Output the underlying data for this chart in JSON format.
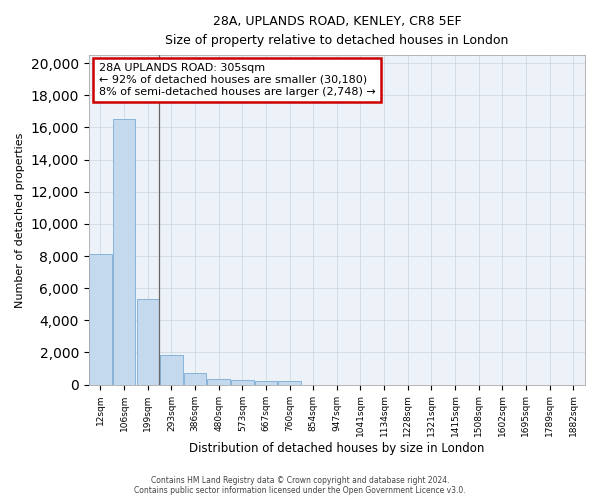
{
  "title1": "28A, UPLANDS ROAD, KENLEY, CR8 5EF",
  "title2": "Size of property relative to detached houses in London",
  "xlabel": "Distribution of detached houses by size in London",
  "ylabel": "Number of detached properties",
  "categories": [
    "12sqm",
    "106sqm",
    "199sqm",
    "293sqm",
    "386sqm",
    "480sqm",
    "573sqm",
    "667sqm",
    "760sqm",
    "854sqm",
    "947sqm",
    "1041sqm",
    "1134sqm",
    "1228sqm",
    "1321sqm",
    "1415sqm",
    "1508sqm",
    "1602sqm",
    "1695sqm",
    "1789sqm",
    "1882sqm"
  ],
  "values": [
    8100,
    16500,
    5300,
    1850,
    750,
    350,
    260,
    220,
    200,
    0,
    0,
    0,
    0,
    0,
    0,
    0,
    0,
    0,
    0,
    0,
    0
  ],
  "bar_color": "#c5d9ee",
  "bar_edge_color": "#7aaed4",
  "annotation_title": "28A UPLANDS ROAD: 305sqm",
  "annotation_line1": "← 92% of detached houses are smaller (30,180)",
  "annotation_line2": "8% of semi-detached houses are larger (2,748) →",
  "annotation_box_color": "#cc0000",
  "vline_x": 2.47,
  "vline_color": "#666666",
  "ylim": [
    0,
    20500
  ],
  "yticks": [
    0,
    2000,
    4000,
    6000,
    8000,
    10000,
    12000,
    14000,
    16000,
    18000,
    20000
  ],
  "grid_color": "#c8d4e0",
  "bg_color": "#edf2f8",
  "footer1": "Contains HM Land Registry data © Crown copyright and database right 2024.",
  "footer2": "Contains public sector information licensed under the Open Government Licence v3.0."
}
